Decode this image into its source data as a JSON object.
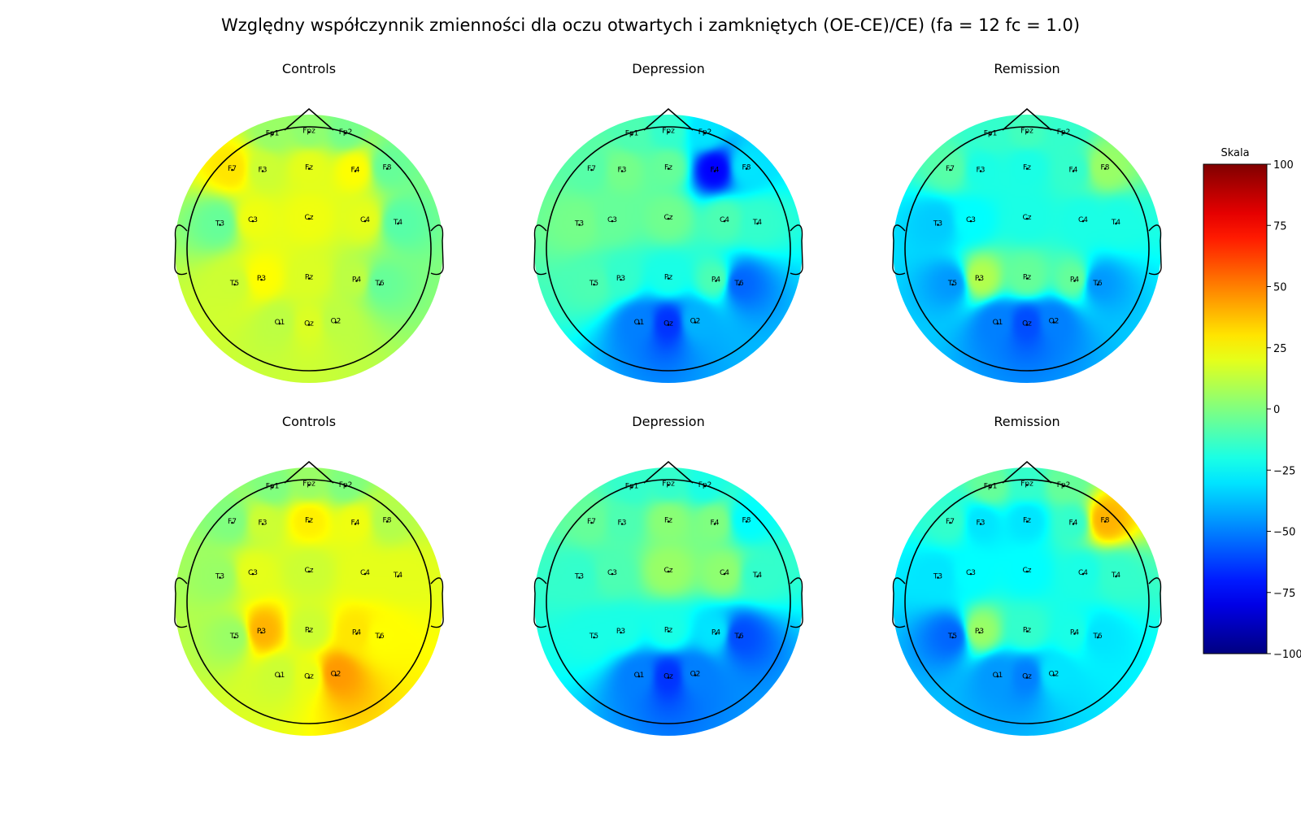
{
  "figure": {
    "title": "Względny współczynnik zmienności dla oczu otwartych i zamkniętych (OE-CE)/CE) (fa = 12 fc = 1.0)"
  },
  "chart_data": {
    "type": "heatmap",
    "subtype": "eeg-topomap",
    "colormap": "jet",
    "electrodes": [
      "Fp1",
      "Fpz",
      "Fp2",
      "F7",
      "F3",
      "Fz",
      "F4",
      "F8",
      "T3",
      "C3",
      "Cz",
      "C4",
      "T4",
      "T5",
      "P3",
      "Pz",
      "P4",
      "T6",
      "O1",
      "Oz",
      "O2"
    ],
    "panels": [
      {
        "title": "Controls",
        "row": 0,
        "col": 0,
        "values": {
          "Fp1": 5,
          "Fpz": 3,
          "Fp2": -2,
          "F7": 30,
          "F3": 15,
          "Fz": 20,
          "F4": 25,
          "F8": -5,
          "T3": -5,
          "C3": 22,
          "Cz": 22,
          "C4": 20,
          "T4": -8,
          "T5": 15,
          "P3": 25,
          "Pz": 18,
          "P4": 12,
          "T6": -5,
          "O1": 12,
          "Oz": 18,
          "O2": 12
        }
      },
      {
        "title": "Depression",
        "row": 0,
        "col": 1,
        "values": {
          "Fp1": -10,
          "Fpz": -15,
          "Fp2": -30,
          "F7": -8,
          "F3": -2,
          "Fz": -5,
          "F4": -75,
          "F8": -30,
          "T3": -2,
          "C3": -5,
          "Cz": -3,
          "C4": -10,
          "T4": -15,
          "T5": -10,
          "P3": -15,
          "Pz": -20,
          "P4": -10,
          "T6": -55,
          "O1": -50,
          "Oz": -65,
          "O2": -40
        }
      },
      {
        "title": "Remission",
        "row": 0,
        "col": 2,
        "values": {
          "Fp1": -15,
          "Fpz": -12,
          "Fp2": -15,
          "F7": -8,
          "F3": -20,
          "Fz": -20,
          "F4": -15,
          "F8": 5,
          "T3": -35,
          "C3": -25,
          "Cz": -20,
          "C4": -20,
          "T4": -20,
          "T5": -45,
          "P3": 10,
          "Pz": -5,
          "P4": -5,
          "T6": -45,
          "O1": -50,
          "Oz": -60,
          "O2": -50
        }
      },
      {
        "title": "Controls",
        "row": 1,
        "col": 0,
        "values": {
          "Fp1": 0,
          "Fpz": 5,
          "Fp2": 0,
          "F7": 0,
          "F3": 15,
          "Fz": 28,
          "F4": 22,
          "F8": 10,
          "T3": 5,
          "C3": 20,
          "Cz": 15,
          "C4": 20,
          "T4": 20,
          "T5": 5,
          "P3": 40,
          "Pz": 15,
          "P4": 30,
          "T6": 25,
          "O1": 15,
          "Oz": 20,
          "O2": 45
        }
      },
      {
        "title": "Depression",
        "row": 1,
        "col": 1,
        "values": {
          "Fp1": -15,
          "Fpz": -15,
          "Fp2": -20,
          "F7": -5,
          "F3": -10,
          "Fz": 2,
          "F4": 0,
          "F8": -25,
          "T3": -15,
          "C3": -10,
          "Cz": 5,
          "C4": 3,
          "T4": -15,
          "T5": -20,
          "P3": -20,
          "Pz": -20,
          "P4": -30,
          "T6": -60,
          "O1": -50,
          "Oz": -65,
          "O2": -50
        }
      },
      {
        "title": "Remission",
        "row": 1,
        "col": 2,
        "values": {
          "Fp1": -5,
          "Fpz": -15,
          "Fp2": -5,
          "F7": -15,
          "F3": -30,
          "Fz": -30,
          "F4": -15,
          "F8": 40,
          "T3": -30,
          "C3": -25,
          "Cz": -25,
          "C4": -20,
          "T4": -15,
          "T5": -55,
          "P3": 5,
          "Pz": -15,
          "P4": -20,
          "T6": -30,
          "O1": -45,
          "Oz": -50,
          "O2": -30
        }
      }
    ],
    "colorbar": {
      "title": "Skala",
      "range": [
        -100,
        100
      ],
      "ticks": [
        100,
        75,
        50,
        25,
        0,
        -25,
        -50,
        -75,
        -100
      ],
      "tick_labels": [
        "100",
        "75",
        "50",
        "25",
        "0",
        "−25",
        "−50",
        "−75",
        "−100"
      ]
    }
  }
}
